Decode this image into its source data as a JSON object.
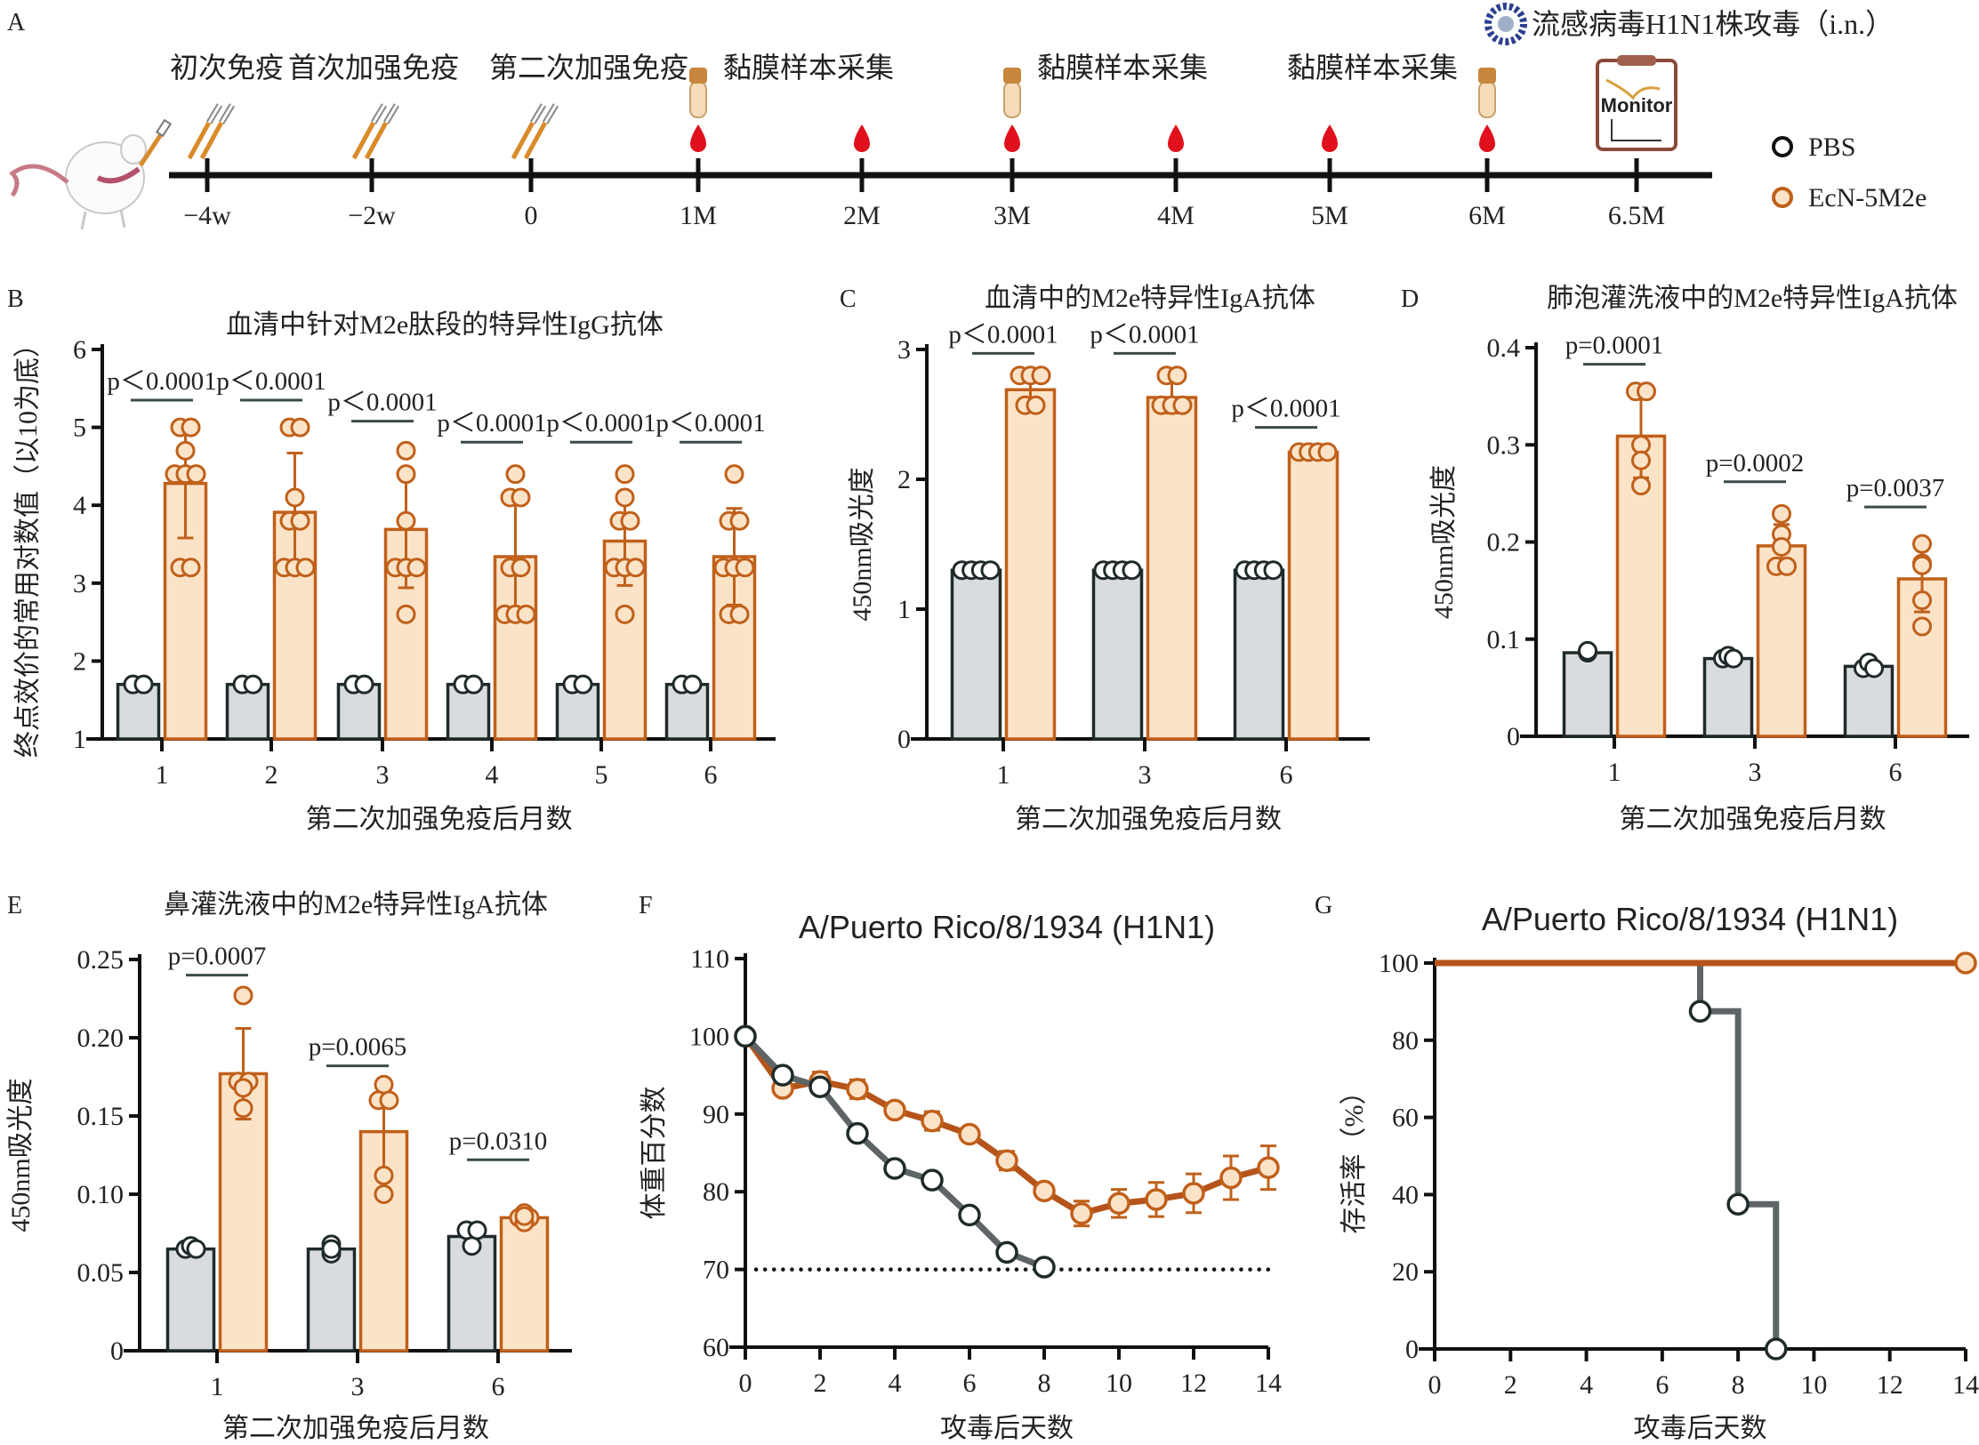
{
  "colors": {
    "pbs_stroke": "#1f2a2a",
    "pbs_fill": "#d9dcde",
    "pbs_line": "#5d6566",
    "ecn_stroke": "#c0601a",
    "ecn_fill": "#fbe3c8",
    "ecn_line": "#b5541a",
    "blood": "#e0101c",
    "tube_cap": "#c8873d",
    "tube_body": "#f6dcb8",
    "sig_bar": "#3a4a4a"
  },
  "legend": {
    "items": [
      {
        "label": "PBS",
        "group": "pbs"
      },
      {
        "label": "EcN-5M2e",
        "group": "ecn"
      }
    ]
  },
  "panel_a": {
    "letter": "A",
    "events": [
      {
        "label": "初次免疫",
        "time": "−4w",
        "icon": "syringe-icon"
      },
      {
        "label": "首次加强免疫",
        "time": "−2w",
        "icon": "syringe-icon"
      },
      {
        "label": "第二次加强免疫",
        "time": "0",
        "icon": "syringe-icon"
      },
      {
        "label": "黏膜样本采集",
        "time": "1M",
        "icon": "sample-tube-icon",
        "blood": true
      },
      {
        "label": "",
        "time": "2M",
        "blood": true
      },
      {
        "label": "黏膜样本采集",
        "time": "3M",
        "icon": "sample-tube-icon",
        "blood": true
      },
      {
        "label": "",
        "time": "4M",
        "blood": true
      },
      {
        "label": "",
        "time": "5M",
        "blood": true
      },
      {
        "label": "黏膜样本采集",
        "time": "6M",
        "icon": "sample-tube-icon",
        "blood": true
      },
      {
        "label": "",
        "time": "6.5M",
        "icon": "monitor-clipboard-icon"
      }
    ],
    "challenge_label": "流感病毒H1N1株攻毒（i.n.）",
    "monitor_label": "Monitor"
  },
  "chart_data": [
    {
      "id": "B",
      "type": "bar",
      "title": "血清中针对M2e肽段的特异性IgG抗体",
      "xlabel": "第二次加强免疫后月数",
      "ylabel": "终点效价的常用对数值（以10为底）",
      "categories": [
        "1",
        "2",
        "3",
        "4",
        "5",
        "6"
      ],
      "ylim": [
        1,
        6
      ],
      "yticks": [
        "1",
        "2",
        "3",
        "4",
        "5",
        "6"
      ],
      "series": [
        {
          "name": "PBS",
          "values": [
            1.7,
            1.7,
            1.7,
            1.7,
            1.7,
            1.7
          ],
          "err": [
            0,
            0,
            0,
            0,
            0,
            0
          ],
          "points": [
            [
              1.7,
              1.7
            ],
            [
              1.7,
              1.7
            ],
            [
              1.7,
              1.7
            ],
            [
              1.7,
              1.7
            ],
            [
              1.7,
              1.7
            ],
            [
              1.7,
              1.7
            ]
          ]
        },
        {
          "name": "EcN-5M2e",
          "values": [
            4.28,
            3.91,
            3.69,
            3.34,
            3.54,
            3.34
          ],
          "err": [
            0.7,
            0.76,
            0.75,
            0.76,
            0.57,
            0.62
          ],
          "points": [
            [
              5.0,
              5.0,
              4.7,
              4.4,
              4.4,
              4.4,
              3.2,
              3.2
            ],
            [
              5.0,
              5.0,
              4.1,
              3.8,
              3.8,
              3.2,
              3.2,
              3.2
            ],
            [
              4.7,
              4.4,
              3.8,
              3.2,
              3.2,
              3.2,
              2.6
            ],
            [
              4.4,
              4.1,
              4.1,
              3.2,
              3.2,
              2.6,
              2.6,
              2.6
            ],
            [
              4.4,
              4.1,
              3.8,
              3.8,
              3.2,
              3.2,
              3.2,
              2.6
            ],
            [
              4.4,
              3.8,
              3.8,
              3.2,
              3.2,
              3.2,
              2.6,
              2.6
            ]
          ]
        }
      ],
      "annotations": [
        "p＜0.0001",
        "p＜0.0001",
        "p＜0.0001",
        "p＜0.0001",
        "p＜0.0001",
        "p＜0.0001"
      ],
      "annotation_y": [
        5.35,
        5.35,
        5.08,
        4.81,
        4.81,
        4.81
      ]
    },
    {
      "id": "C",
      "type": "bar",
      "title": "血清中的M2e特异性IgA抗体",
      "xlabel": "第二次加强免疫后月数",
      "ylabel": "450nm吸光度",
      "categories": [
        "1",
        "3",
        "6"
      ],
      "ylim": [
        0,
        3
      ],
      "yticks": [
        "0",
        "1",
        "2",
        "3"
      ],
      "series": [
        {
          "name": "PBS",
          "values": [
            1.3,
            1.3,
            1.3
          ],
          "err": [
            0,
            0,
            0
          ],
          "points": [
            [
              1.3,
              1.3,
              1.3,
              1.3
            ],
            [
              1.3,
              1.3,
              1.3,
              1.3
            ],
            [
              1.3,
              1.3,
              1.3,
              1.3
            ]
          ]
        },
        {
          "name": "EcN-5M2e",
          "values": [
            2.69,
            2.63,
            2.21
          ],
          "err": [
            0.12,
            0.12,
            0.01
          ],
          "points": [
            [
              2.8,
              2.8,
              2.8,
              2.57,
              2.57
            ],
            [
              2.8,
              2.8,
              2.57,
              2.57,
              2.57
            ],
            [
              2.21,
              2.21,
              2.21,
              2.21
            ]
          ]
        }
      ],
      "annotations": [
        "p＜0.0001",
        "p＜0.0001",
        "p＜0.0001"
      ],
      "annotation_y": [
        2.97,
        2.97,
        2.4
      ]
    },
    {
      "id": "D",
      "type": "bar",
      "title": "肺泡灌洗液中的M2e特异性IgA抗体",
      "xlabel": "第二次加强免疫后月数",
      "ylabel": "450nm吸光度",
      "categories": [
        "1",
        "3",
        "6"
      ],
      "ylim": [
        0,
        0.4
      ],
      "yticks": [
        "0",
        "0.1",
        "0.2",
        "0.3",
        "0.4"
      ],
      "series": [
        {
          "name": "PBS",
          "values": [
            0.086,
            0.08,
            0.072
          ],
          "err": [
            0,
            0,
            0
          ],
          "points": [
            [
              0.086,
              0.087,
              0.088
            ],
            [
              0.08,
              0.083,
              0.08
            ],
            [
              0.07,
              0.076,
              0.07
            ]
          ]
        },
        {
          "name": "EcN-5M2e",
          "values": [
            0.309,
            0.196,
            0.162
          ],
          "err": [
            0.043,
            0.022,
            0.034
          ],
          "points": [
            [
              0.355,
              0.355,
              0.3,
              0.284,
              0.258
            ],
            [
              0.229,
              0.208,
              0.195,
              0.175,
              0.175
            ],
            [
              0.198,
              0.178,
              0.176,
              0.14,
              0.113
            ]
          ]
        }
      ],
      "annotations": [
        "p=0.0001",
        "p=0.0002",
        "p=0.0037"
      ],
      "annotation_y": [
        0.383,
        0.262,
        0.236
      ]
    },
    {
      "id": "E",
      "type": "bar",
      "title": "鼻灌洗液中的M2e特异性IgA抗体",
      "xlabel": "第二次加强免疫后月数",
      "ylabel": "450nm吸光度",
      "categories": [
        "1",
        "3",
        "6"
      ],
      "ylim": [
        0,
        0.25
      ],
      "yticks": [
        "0",
        "0.05",
        "0.10",
        "0.15",
        "0.20",
        "0.25"
      ],
      "series": [
        {
          "name": "PBS",
          "values": [
            0.065,
            0.065,
            0.073
          ],
          "err": [
            0,
            0,
            0.005
          ],
          "points": [
            [
              0.065,
              0.067,
              0.065
            ],
            [
              0.062,
              0.068,
              0.065
            ],
            [
              0.067,
              0.077,
              0.077
            ]
          ]
        },
        {
          "name": "EcN-5M2e",
          "values": [
            0.177,
            0.14,
            0.085
          ],
          "err": [
            0.029,
            0.031,
            0.004
          ],
          "points": [
            [
              0.227,
              0.172,
              0.172,
              0.168,
              0.155
            ],
            [
              0.17,
              0.16,
              0.16,
              0.112,
              0.1
            ],
            [
              0.088,
              0.085,
              0.085,
              0.082,
              0.086
            ]
          ]
        }
      ],
      "annotations": [
        "p=0.0007",
        "p=0.0065",
        "p=0.0310"
      ],
      "annotation_y": [
        0.24,
        0.182,
        0.122
      ]
    },
    {
      "id": "F",
      "type": "line",
      "title": "A/Puerto Rico/8/1934 (H1N1)",
      "xlabel": "攻毒后天数",
      "ylabel": "体重百分数",
      "xlim": [
        0,
        14
      ],
      "ylim": [
        60,
        110
      ],
      "xticks": [
        "0",
        "2",
        "4",
        "6",
        "8",
        "10",
        "12",
        "14"
      ],
      "yticks": [
        "60",
        "70",
        "80",
        "90",
        "100",
        "110"
      ],
      "reference_line": 70,
      "series": [
        {
          "name": "PBS",
          "x": [
            0,
            1,
            2,
            3,
            4,
            5,
            6,
            7,
            8
          ],
          "y": [
            100,
            95,
            93.5,
            87.5,
            83,
            81.5,
            77,
            72.2,
            70.3
          ],
          "err": [
            0,
            0,
            0,
            0,
            0,
            0,
            0,
            0,
            0
          ]
        },
        {
          "name": "EcN-5M2e",
          "x": [
            0,
            1,
            2,
            3,
            4,
            5,
            6,
            7,
            8,
            9,
            10,
            11,
            12,
            13,
            14
          ],
          "y": [
            100,
            93.3,
            94.2,
            93.2,
            90.5,
            89.1,
            87.4,
            84,
            80.1,
            77.2,
            78.5,
            79,
            79.8,
            81.8,
            83.1
          ],
          "err": [
            0,
            0.6,
            1.2,
            1.2,
            0.8,
            1.2,
            0.8,
            1.2,
            0.6,
            1.6,
            1.8,
            2.2,
            2.5,
            2.8,
            2.8
          ]
        }
      ]
    },
    {
      "id": "G",
      "type": "line",
      "title": "A/Puerto Rico/8/1934 (H1N1)",
      "xlabel": "攻毒后天数",
      "ylabel": "存活率（%）",
      "xlim": [
        0,
        14
      ],
      "ylim": [
        0,
        100
      ],
      "xticks": [
        "0",
        "2",
        "4",
        "6",
        "8",
        "10",
        "12",
        "14"
      ],
      "yticks": [
        "0",
        "20",
        "40",
        "60",
        "80",
        "100"
      ],
      "series": [
        {
          "name": "PBS",
          "step": true,
          "x": [
            0,
            7,
            8,
            9
          ],
          "y": [
            100,
            87.5,
            37.5,
            0
          ],
          "markers": [
            [
              7,
              87.5
            ],
            [
              8,
              37.5
            ],
            [
              9,
              0
            ]
          ]
        },
        {
          "name": "EcN-5M2e",
          "step": true,
          "x": [
            0,
            14
          ],
          "y": [
            100,
            100
          ],
          "markers": [
            [
              14,
              100
            ]
          ]
        }
      ]
    }
  ]
}
